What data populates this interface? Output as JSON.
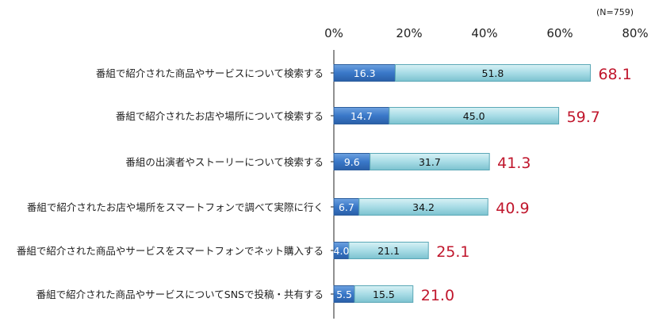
{
  "sample_note": "(N=759)",
  "chart_data": {
    "type": "bar",
    "orientation": "horizontal",
    "stacked": true,
    "categories": [
      "番組で紹介された商品やサービスについて検索する",
      "番組で紹介されたお店や場所について検索する",
      "番組の出演者やストーリーについて検索する",
      "番組で紹介されたお店や場所をスマートフォンで調べて実際に行く",
      "番組で紹介された商品やサービスをスマートフォンでネット購入する",
      "番組で紹介された商品やサービスについてSNSで投稿・共有する"
    ],
    "series": [
      {
        "values": [
          16.3,
          14.7,
          9.6,
          6.7,
          4.0,
          5.5
        ],
        "color": "#3a78c8"
      },
      {
        "values": [
          51.8,
          45.0,
          31.7,
          34.2,
          21.1,
          15.5
        ],
        "color": "#a8dce6"
      }
    ],
    "totals": [
      "68.1",
      "59.7",
      "41.3",
      "40.9",
      "25.1",
      "21.0"
    ],
    "labels": [
      [
        "16.3",
        "51.8"
      ],
      [
        "14.7",
        "45.0"
      ],
      [
        "9.6",
        "31.7"
      ],
      [
        "6.7",
        "34.2"
      ],
      [
        "4.0",
        "21.1"
      ],
      [
        "5.5",
        "15.5"
      ]
    ],
    "xlim": [
      0,
      80
    ],
    "xticks": [
      0,
      20,
      40,
      60,
      80
    ],
    "xtick_labels": [
      "0%",
      "20%",
      "40%",
      "60%",
      "80%"
    ],
    "axis_position": "top",
    "grid": false,
    "total_color": "#c0162c"
  }
}
